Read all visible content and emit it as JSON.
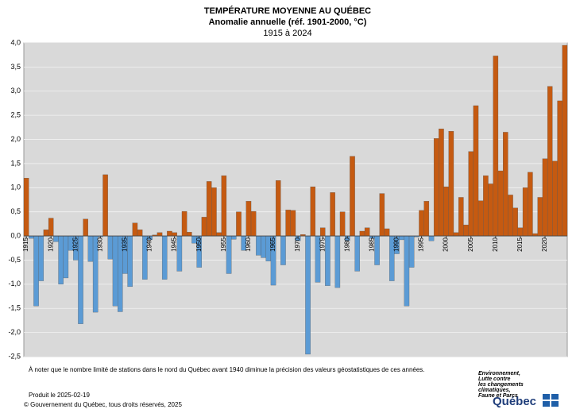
{
  "chart_data": {
    "type": "bar",
    "title": "TEMPÉRATURE MOYENNE AU QUÉBEC",
    "subtitle": "Anomalie annuelle (réf. 1901-2000, °C)",
    "period": "1915 à 2024",
    "note": "À noter que le nombre limité de stations dans le nord du Québec avant 1940 diminue la précision des valeurs géostatistiques de ces années.",
    "produced": "Produit le 2025-02-19",
    "copyright": "© Gouvernement du Québec, tous droits réservés, 2025",
    "logo_text": [
      "Environnement,",
      "Lutte contre",
      "les changements",
      "climatiques,",
      "Faune et Parcs"
    ],
    "logo_name": "Québec",
    "positive_color": "#c55a11",
    "negative_color": "#5b9bd5",
    "x": [
      1915,
      1916,
      1917,
      1918,
      1919,
      1920,
      1921,
      1922,
      1923,
      1924,
      1925,
      1926,
      1927,
      1928,
      1929,
      1930,
      1931,
      1932,
      1933,
      1934,
      1935,
      1936,
      1937,
      1938,
      1939,
      1940,
      1941,
      1942,
      1943,
      1944,
      1945,
      1946,
      1947,
      1948,
      1949,
      1950,
      1951,
      1952,
      1953,
      1954,
      1955,
      1956,
      1957,
      1958,
      1959,
      1960,
      1961,
      1962,
      1963,
      1964,
      1965,
      1966,
      1967,
      1968,
      1969,
      1970,
      1971,
      1972,
      1973,
      1974,
      1975,
      1976,
      1977,
      1978,
      1979,
      1980,
      1981,
      1982,
      1983,
      1984,
      1985,
      1986,
      1987,
      1988,
      1989,
      1990,
      1991,
      1992,
      1993,
      1994,
      1995,
      1996,
      1997,
      1998,
      1999,
      2000,
      2001,
      2002,
      2003,
      2004,
      2005,
      2006,
      2007,
      2008,
      2009,
      2010,
      2011,
      2012,
      2013,
      2014,
      2015,
      2016,
      2017,
      2018,
      2019,
      2020,
      2021,
      2022,
      2023,
      2024
    ],
    "values": [
      1.2,
      -0.05,
      -1.45,
      -0.93,
      0.13,
      0.37,
      -0.12,
      -1.0,
      -0.87,
      -0.3,
      -0.5,
      -1.82,
      0.35,
      -0.53,
      -1.58,
      -0.02,
      1.27,
      -0.48,
      -1.45,
      -1.57,
      -0.78,
      -1.05,
      0.27,
      0.13,
      -0.9,
      -0.08,
      0.02,
      0.07,
      -0.9,
      0.1,
      0.07,
      -0.73,
      0.51,
      0.08,
      -0.15,
      -0.65,
      0.39,
      1.13,
      1.0,
      0.07,
      1.25,
      -0.78,
      -0.07,
      0.5,
      -0.3,
      0.72,
      0.51,
      -0.4,
      -0.45,
      -0.52,
      -1.02,
      1.15,
      -0.6,
      0.54,
      0.53,
      -0.1,
      0.03,
      -2.45,
      1.02,
      -0.96,
      0.17,
      -1.03,
      0.9,
      -1.07,
      0.5,
      -0.1,
      1.65,
      -0.73,
      0.1,
      0.17,
      -0.05,
      -0.6,
      0.88,
      0.15,
      -0.93,
      -0.37,
      -0.08,
      -1.45,
      -0.65,
      -0.02,
      0.53,
      0.72,
      -0.1,
      2.02,
      2.22,
      1.02,
      2.17,
      0.07,
      0.8,
      0.23,
      1.75,
      2.7,
      0.73,
      1.25,
      1.08,
      3.73,
      1.35,
      2.15,
      0.85,
      0.58,
      0.17,
      1.0,
      1.32,
      0.05,
      0.8,
      1.6,
      3.1,
      1.55,
      2.8,
      3.95
    ],
    "xlim": [
      1915,
      2025
    ],
    "xticks": [
      1915,
      1920,
      1925,
      1930,
      1935,
      1940,
      1945,
      1950,
      1955,
      1960,
      1965,
      1970,
      1975,
      1980,
      1985,
      1990,
      1995,
      2000,
      2005,
      2010,
      2015,
      2020
    ],
    "ylim": [
      -2.5,
      4
    ],
    "yticks": [
      {
        "value": -2.5,
        "label": "-2,5"
      },
      {
        "value": -2,
        "label": "-2,0"
      },
      {
        "value": -1.5,
        "label": "-1,5"
      },
      {
        "value": -1,
        "label": "-1,0"
      },
      {
        "value": -0.5,
        "label": "-0,5"
      },
      {
        "value": 0,
        "label": "0,0"
      },
      {
        "value": 0.5,
        "label": "0,5"
      },
      {
        "value": 1,
        "label": "1,0"
      },
      {
        "value": 1.5,
        "label": "1,5"
      },
      {
        "value": 2,
        "label": "2,0"
      },
      {
        "value": 2.5,
        "label": "2,5"
      },
      {
        "value": 3,
        "label": "3,0"
      },
      {
        "value": 3.5,
        "label": "3,5"
      },
      {
        "value": 4,
        "label": "4,0"
      }
    ],
    "grid": true
  }
}
